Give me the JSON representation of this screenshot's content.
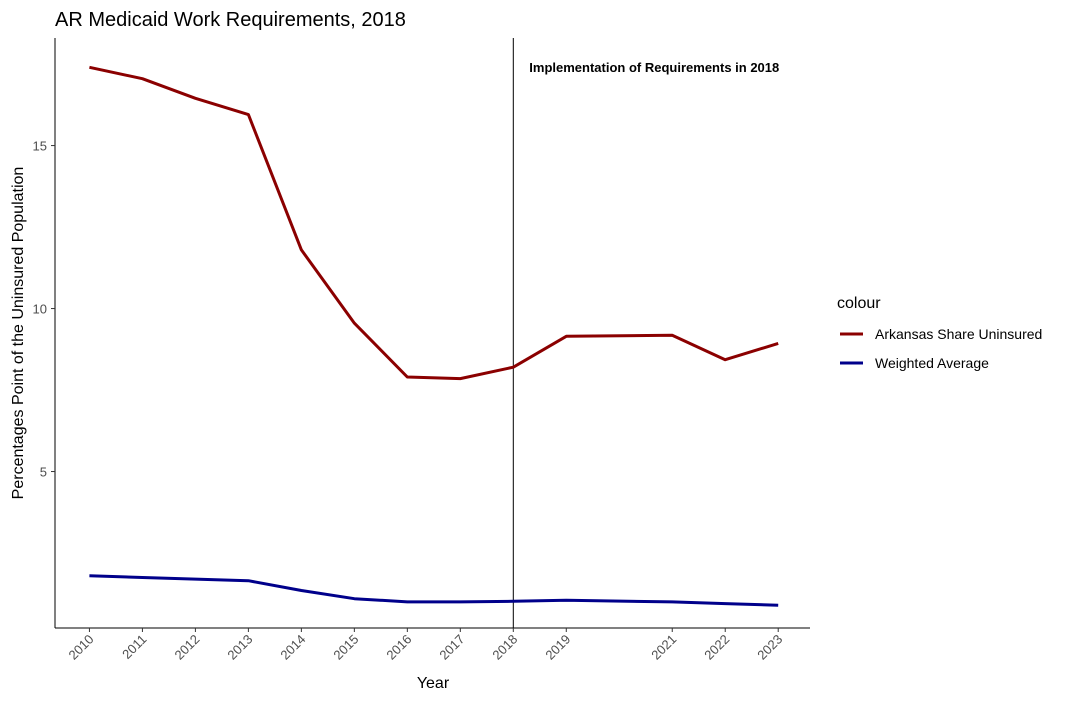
{
  "chart_data": {
    "type": "line",
    "title": "AR Medicaid Work Requirements, 2018",
    "xlabel": "Year",
    "ylabel": "Percentages Point of the Uninsured Population",
    "x": [
      2010,
      2011,
      2012,
      2013,
      2014,
      2015,
      2016,
      2017,
      2018,
      2019,
      2021,
      2022,
      2023
    ],
    "x_tick_labels": [
      "2010",
      "2011",
      "2012",
      "2013",
      "2014",
      "2015",
      "2016",
      "2017",
      "2018",
      "2019",
      "2021",
      "2022",
      "2023"
    ],
    "xlim": [
      2009.35,
      2023.6
    ],
    "ylim": [
      0.2,
      18.3
    ],
    "y_ticks": [
      5,
      10,
      15
    ],
    "y_tick_labels": [
      "5",
      "10",
      "15"
    ],
    "grid": false,
    "legend_position": "right",
    "legend_title": "colour",
    "series": [
      {
        "name": "Arkansas Share Uninsured",
        "color": "#8b0000",
        "values": [
          17.4,
          17.05,
          16.45,
          15.95,
          11.8,
          9.55,
          7.9,
          7.85,
          8.2,
          9.15,
          9.18,
          8.43,
          8.93
        ]
      },
      {
        "name": "Weighted Average",
        "color": "#00008b",
        "values": [
          1.8,
          1.75,
          1.7,
          1.65,
          1.35,
          1.1,
          1.0,
          1.0,
          1.02,
          1.05,
          1.0,
          0.95,
          0.9
        ]
      }
    ],
    "vline": {
      "x": 2018,
      "label": "Implementation of Requirements in 2018"
    }
  }
}
